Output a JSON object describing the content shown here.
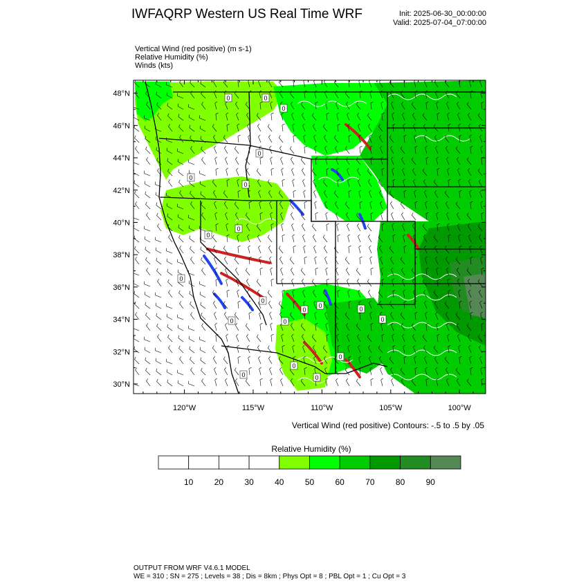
{
  "header": {
    "title": "IWFAQRP Western US Real Time WRF",
    "init": "Init: 2025-06-30_00:00:00",
    "valid": "Valid: 2025-07-04_07:00:00"
  },
  "fields": [
    "Vertical Wind (red positive)   (m s-1)",
    "Relative Humidity   (%)",
    "Winds   (kts)"
  ],
  "map": {
    "lat_range": [
      29.4,
      48.8
    ],
    "lon_range": [
      -123.7,
      -98.1
    ],
    "lat_ticks": [
      {
        "value": 30,
        "label": "30°N"
      },
      {
        "value": 32,
        "label": "32°N"
      },
      {
        "value": 34,
        "label": "34°N"
      },
      {
        "value": 36,
        "label": "36°N"
      },
      {
        "value": 38,
        "label": "38°N"
      },
      {
        "value": 40,
        "label": "40°N"
      },
      {
        "value": 42,
        "label": "42°N"
      },
      {
        "value": 44,
        "label": "44°N"
      },
      {
        "value": 46,
        "label": "46°N"
      },
      {
        "value": 48,
        "label": "48°N"
      }
    ],
    "lon_ticks": [
      {
        "value": -120,
        "label": "120°W"
      },
      {
        "value": -115,
        "label": "115°W"
      },
      {
        "value": -110,
        "label": "110°W"
      },
      {
        "value": -105,
        "label": "105°W"
      },
      {
        "value": -100,
        "label": "100°W"
      }
    ],
    "contour_info": "Vertical Wind (red positive) Contours: -.5 to .5 by .05",
    "contour_zero_label": "0",
    "colors": {
      "ocean": "#ffffff",
      "dry": "#ffffff",
      "rh_40": "#80ff00",
      "rh_50": "#00ff00",
      "rh_60": "#00cc00",
      "rh_70": "#009900",
      "rh_80": "#228b22",
      "rh_90": "#558855",
      "updraft": "#cc2222",
      "downdraft": "#2244ee"
    }
  },
  "colorbar": {
    "title": "Relative Humidity   (%)",
    "labels": [
      "10",
      "20",
      "30",
      "40",
      "50",
      "60",
      "70",
      "80",
      "90"
    ],
    "colors": [
      "#ffffff",
      "#ffffff",
      "#ffffff",
      "#ffffff",
      "#80ff00",
      "#00ff00",
      "#00cc00",
      "#009900",
      "#228b22",
      "#558855"
    ]
  },
  "footer": {
    "line1": "OUTPUT FROM WRF V4.6.1 MODEL",
    "line2": "WE = 310 ; SN = 275 ; Levels = 38 ; Dis = 8km ; Phys Opt = 8 ; PBL Opt = 1 ; Cu Opt = 3"
  }
}
